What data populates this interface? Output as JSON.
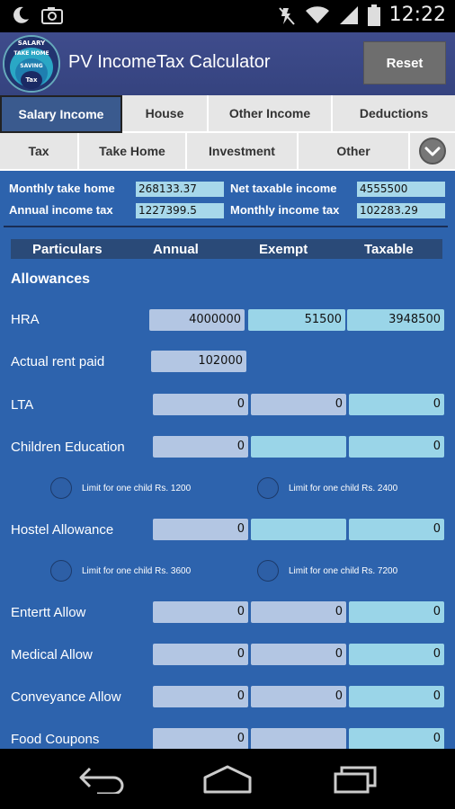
{
  "status_bar": {
    "time": "12:22",
    "icons": [
      "moon-icon",
      "camera-icon",
      "mute-icon",
      "wifi-icon",
      "signal-icon",
      "battery-icon"
    ]
  },
  "app": {
    "title": "PV IncomeTax Calculator",
    "reset_label": "Reset",
    "logo": {
      "salary": "SALARY",
      "take_home": "TAKE HOME",
      "saving": "SAVING",
      "tax": "Tax"
    }
  },
  "tabs_row1": [
    "Salary Income",
    "House",
    "Other Income",
    "Deductions"
  ],
  "tabs_row2": [
    "Tax",
    "Take Home",
    "Investment",
    "Other"
  ],
  "summary": {
    "monthly_take_home_label": "Monthly take home",
    "monthly_take_home_value": "268133.37",
    "annual_income_tax_label": "Annual income tax",
    "annual_income_tax_value": "1227399.5",
    "net_taxable_income_label": "Net taxable income",
    "net_taxable_income_value": "4555500",
    "monthly_income_tax_label": "Monthly income tax",
    "monthly_income_tax_value": "102283.29"
  },
  "table_header": {
    "particulars": "Particulars",
    "annual": "Annual",
    "exempt": "Exempt",
    "taxable": "Taxable"
  },
  "section_title": "Allowances",
  "rows": {
    "hra": {
      "label": "HRA",
      "annual": "4000000",
      "exempt": "51500",
      "taxable": "3948500"
    },
    "rent": {
      "label": "Actual rent paid",
      "annual": "102000"
    },
    "lta": {
      "label": "LTA",
      "annual": "0",
      "exempt": "0",
      "taxable": "0"
    },
    "children": {
      "label": "Children Education",
      "annual": "0",
      "exempt": "",
      "taxable": "0"
    },
    "hostel": {
      "label": "Hostel Allowance",
      "annual": "0",
      "exempt": "",
      "taxable": "0"
    },
    "entertt": {
      "label": "Entertt Allow",
      "annual": "0",
      "exempt": "0",
      "taxable": "0"
    },
    "medical": {
      "label": "Medical Allow",
      "annual": "0",
      "exempt": "0",
      "taxable": "0"
    },
    "conveyance": {
      "label": "Conveyance Allow",
      "annual": "0",
      "exempt": "0",
      "taxable": "0"
    },
    "food": {
      "label": "Food Coupons",
      "annual": "0",
      "exempt": "",
      "taxable": "0"
    }
  },
  "limits": {
    "children_1": "Limit for one child Rs. 1200",
    "children_2": "Limit for one child Rs. 2400",
    "hostel_1": "Limit for one child Rs. 3600",
    "hostel_2": "Limit for one child Rs. 7200"
  }
}
